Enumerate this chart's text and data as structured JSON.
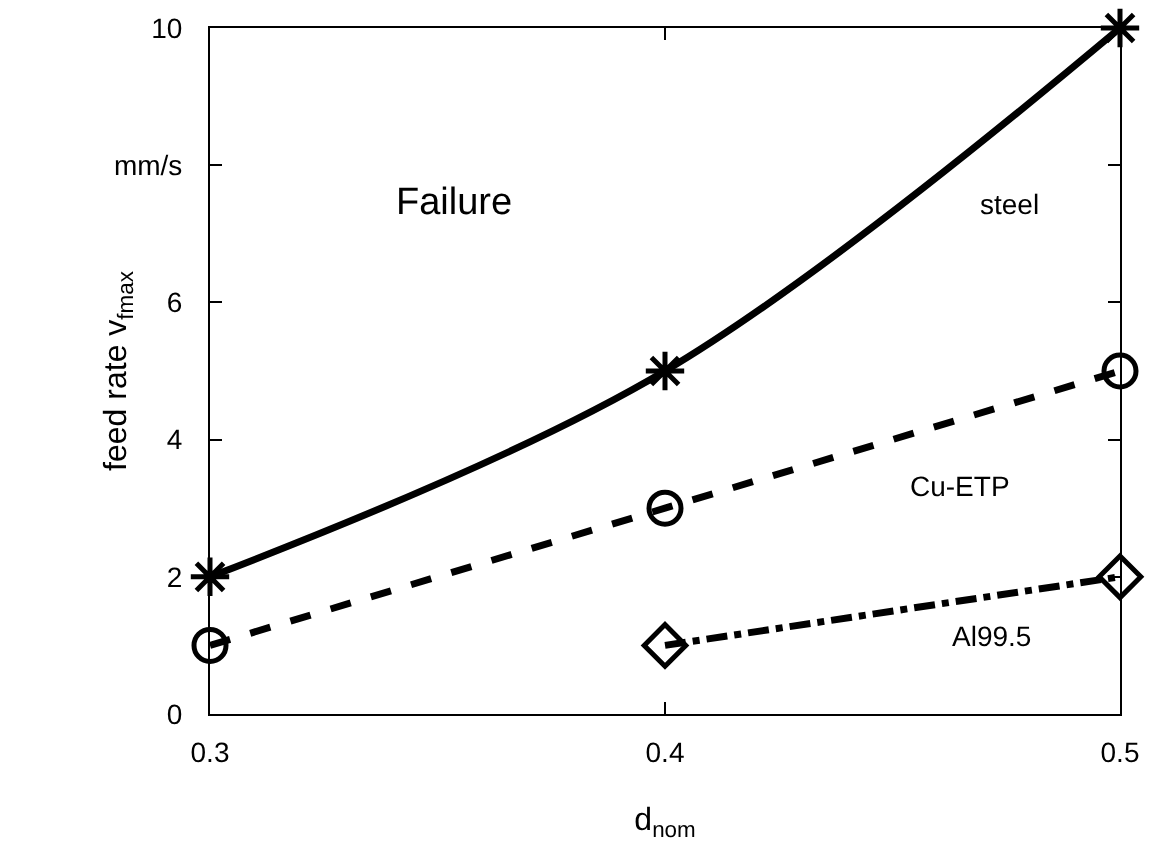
{
  "chart_data": {
    "type": "line",
    "xlabel": "d$_{nom}$",
    "ylabel": "feed rate v$_{fmax}$",
    "annotations": [
      "Failure"
    ],
    "x": [
      0.3,
      0.4,
      0.5
    ],
    "xlim": [
      0.3,
      0.5
    ],
    "xticks": [
      0.3,
      0.4,
      0.5
    ],
    "ylim": [
      0,
      10
    ],
    "yticks": [
      0,
      2,
      4,
      6,
      {
        "value": 8,
        "label": "mm/s"
      },
      10
    ],
    "grid": false,
    "legend": false,
    "series": [
      {
        "name": "steel",
        "color": "#000000",
        "values": [
          2,
          5,
          10
        ],
        "marker": "cross",
        "line_style": "solid"
      },
      {
        "name": "Cu-ETP",
        "color": "#000000",
        "values": [
          1,
          3,
          5
        ],
        "marker": "circle",
        "line_style": "dashed"
      },
      {
        "name": "Al99.5",
        "color": "#000000",
        "values": [
          null,
          1,
          2
        ],
        "marker": "diamond",
        "line_style": "dashdot"
      }
    ]
  }
}
